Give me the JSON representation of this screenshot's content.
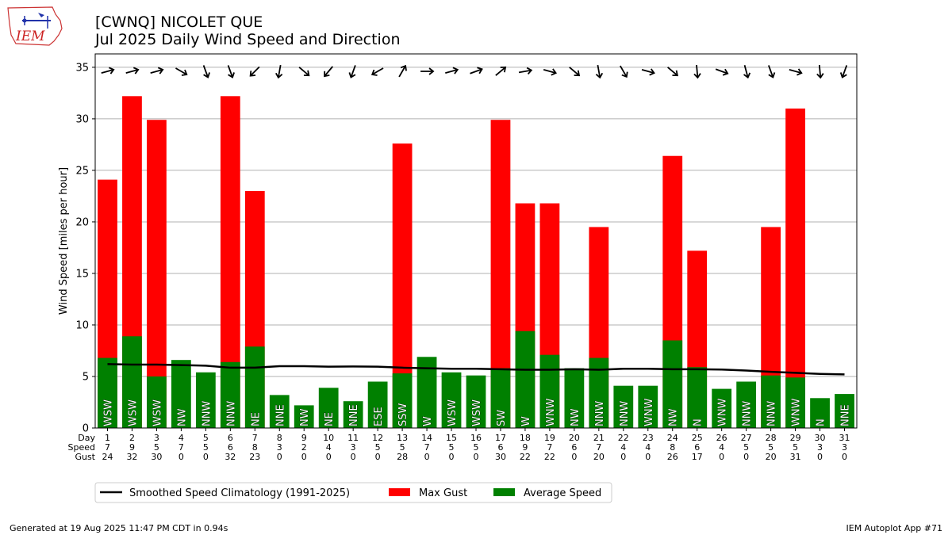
{
  "header": {
    "title": "[CWNQ] NICOLET  QUE",
    "subtitle": "Jul 2025 Daily Wind Speed and Direction"
  },
  "logo": {
    "text": "IEM",
    "icon": "iowa-state-outline-icon"
  },
  "footer": {
    "generated": "Generated at 19 Aug 2025 11:47 PM CDT in 0.94s",
    "app": "IEM Autoplot App #71"
  },
  "table_row_labels": [
    "Day",
    "Speed",
    "Gust"
  ],
  "colors": {
    "gust": "#ff0000",
    "avg": "#008000",
    "climo": "#000000",
    "grid": "#b0b0b0"
  },
  "chart_data": {
    "type": "bar",
    "ylabel": "Wind Speed [miles per hour]",
    "ylim": [
      0,
      36.3
    ],
    "yticks": [
      0,
      5,
      10,
      15,
      20,
      25,
      30,
      35
    ],
    "grid": "horizontal",
    "legend_placement": "bottom-left, below plot",
    "categories": [
      "1",
      "2",
      "3",
      "4",
      "5",
      "6",
      "7",
      "8",
      "9",
      "10",
      "11",
      "12",
      "13",
      "14",
      "15",
      "16",
      "17",
      "18",
      "19",
      "20",
      "21",
      "22",
      "23",
      "24",
      "25",
      "26",
      "27",
      "28",
      "29",
      "30",
      "31"
    ],
    "series": [
      {
        "name": "Max Gust",
        "type": "bar",
        "values": [
          24.1,
          32.2,
          29.9,
          0,
          0,
          32.2,
          23.0,
          0,
          0,
          0,
          0,
          0,
          27.6,
          0,
          0,
          0,
          29.9,
          21.8,
          21.8,
          0,
          19.5,
          0,
          0,
          26.4,
          17.2,
          0,
          0,
          19.5,
          31.0,
          0,
          0
        ]
      },
      {
        "name": "Average Speed",
        "type": "bar",
        "values": [
          6.8,
          8.9,
          5.0,
          6.6,
          5.4,
          6.4,
          7.9,
          3.2,
          2.2,
          3.9,
          2.6,
          4.5,
          5.3,
          6.9,
          5.4,
          5.1,
          5.8,
          9.4,
          7.1,
          5.8,
          6.8,
          4.1,
          4.1,
          8.5,
          5.9,
          3.8,
          4.5,
          5.1,
          4.9,
          2.9,
          3.3
        ]
      },
      {
        "name": "Smoothed Speed Climatology (1991-2025)",
        "type": "line",
        "values": [
          6.2,
          6.15,
          6.15,
          6.1,
          6.05,
          5.85,
          5.85,
          6.0,
          6.0,
          5.95,
          5.97,
          5.95,
          5.85,
          5.8,
          5.75,
          5.75,
          5.7,
          5.65,
          5.65,
          5.7,
          5.65,
          5.75,
          5.75,
          5.7,
          5.7,
          5.67,
          5.58,
          5.45,
          5.35,
          5.25,
          5.2
        ]
      }
    ],
    "directions": [
      "WSW",
      "WSW",
      "WSW",
      "NW",
      "NNW",
      "NNW",
      "NE",
      "NNE",
      "NW",
      "NE",
      "NNE",
      "ESE",
      "SSW",
      "W",
      "WSW",
      "WSW",
      "SW",
      "W",
      "WNW",
      "NW",
      "NNW",
      "NNW",
      "WNW",
      "NW",
      "N",
      "WNW",
      "NNW",
      "NNW",
      "WNW",
      "N",
      "NNE"
    ],
    "arrow_angles_deg": [
      -15,
      -15,
      -15,
      30,
      70,
      70,
      135,
      100,
      40,
      130,
      110,
      150,
      -60,
      0,
      -15,
      -20,
      -40,
      -10,
      15,
      40,
      80,
      60,
      15,
      40,
      85,
      20,
      75,
      70,
      15,
      85,
      110
    ],
    "table": {
      "day": [
        "1",
        "2",
        "3",
        "4",
        "5",
        "6",
        "7",
        "8",
        "9",
        "10",
        "11",
        "12",
        "13",
        "14",
        "15",
        "16",
        "17",
        "18",
        "19",
        "20",
        "21",
        "22",
        "23",
        "24",
        "25",
        "26",
        "27",
        "28",
        "29",
        "30",
        "31"
      ],
      "speed": [
        "7",
        "9",
        "5",
        "7",
        "5",
        "6",
        "8",
        "3",
        "2",
        "4",
        "3",
        "5",
        "5",
        "7",
        "5",
        "5",
        "6",
        "9",
        "7",
        "6",
        "7",
        "4",
        "4",
        "8",
        "6",
        "4",
        "5",
        "5",
        "5",
        "3",
        "3"
      ],
      "gust": [
        "24",
        "32",
        "30",
        "0",
        "0",
        "32",
        "23",
        "0",
        "0",
        "0",
        "0",
        "0",
        "28",
        "0",
        "0",
        "0",
        "30",
        "22",
        "22",
        "0",
        "20",
        "0",
        "0",
        "26",
        "17",
        "0",
        "0",
        "20",
        "31",
        "0",
        "0"
      ]
    }
  }
}
